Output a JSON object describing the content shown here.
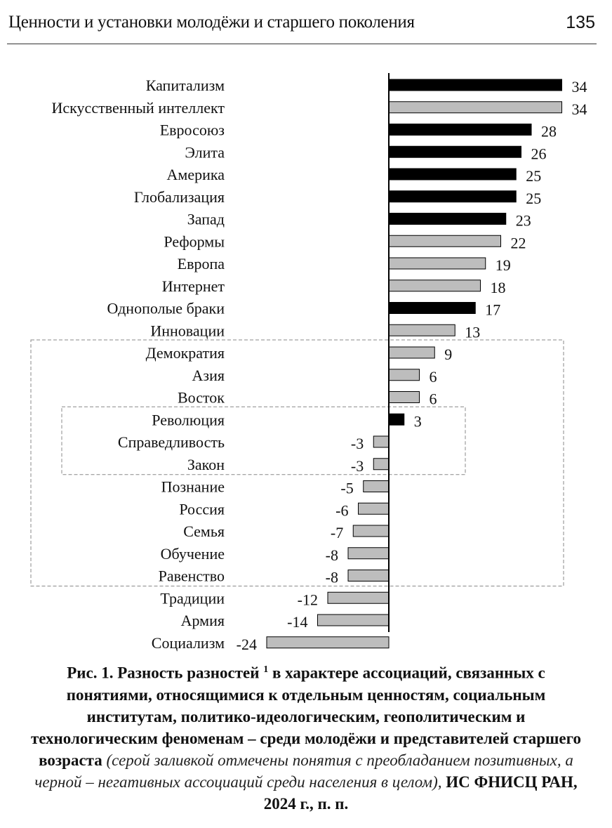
{
  "header": {
    "title": "Ценности и установки молодёжи и старшего поколения",
    "page": "135"
  },
  "chart_data": {
    "type": "bar",
    "orientation": "horizontal",
    "categories": [
      "Капитализм",
      "Искусственный интеллект",
      "Евросоюз",
      "Элита",
      "Америка",
      "Глобализация",
      "Запад",
      "Реформы",
      "Европа",
      "Интернет",
      "Однополые браки",
      "Инновации",
      "Демократия",
      "Азия",
      "Восток",
      "Революция",
      "Справедливость",
      "Закон",
      "Познание",
      "Россия",
      "Семья",
      "Обучение",
      "Равенство",
      "Традиции",
      "Армия",
      "Социализм"
    ],
    "values": [
      34,
      34,
      28,
      26,
      25,
      25,
      23,
      22,
      19,
      18,
      17,
      13,
      9,
      6,
      6,
      3,
      -3,
      -3,
      -5,
      -6,
      -7,
      -8,
      -8,
      -12,
      -14,
      -24
    ],
    "fill": [
      "black",
      "gray",
      "black",
      "black",
      "black",
      "black",
      "black",
      "gray",
      "gray",
      "gray",
      "black",
      "gray",
      "gray",
      "gray",
      "gray",
      "black",
      "gray",
      "gray",
      "gray",
      "gray",
      "gray",
      "gray",
      "gray",
      "gray",
      "gray",
      "gray"
    ],
    "colors": {
      "black": "#000000",
      "gray": "#bdbdbd"
    },
    "xlim": [
      -24,
      34
    ],
    "grid": false,
    "dashed_boxes": [
      {
        "from": "Демократия",
        "to": "Равенство"
      },
      {
        "from": "Революция",
        "to": "Закон"
      }
    ]
  },
  "caption": {
    "bold1": "Рис. 1. Разность разностей ",
    "sup": "1",
    "bold2": " в характере ассоциаций, связанных с понятиями, относящимися к отдельным ценностям, социальным институтам, политико-идеологическим, геополитическим и технологическим феноменам – среди молодёжи и представителей старшего возраста",
    "italic": " (серой заливкой отмечены понятия с преобладанием позитивных, а черной – негативных ассоциаций среди населения в целом), ",
    "bold3": "ИС ФНИСЦ РАН, 2024 г., п. п."
  }
}
